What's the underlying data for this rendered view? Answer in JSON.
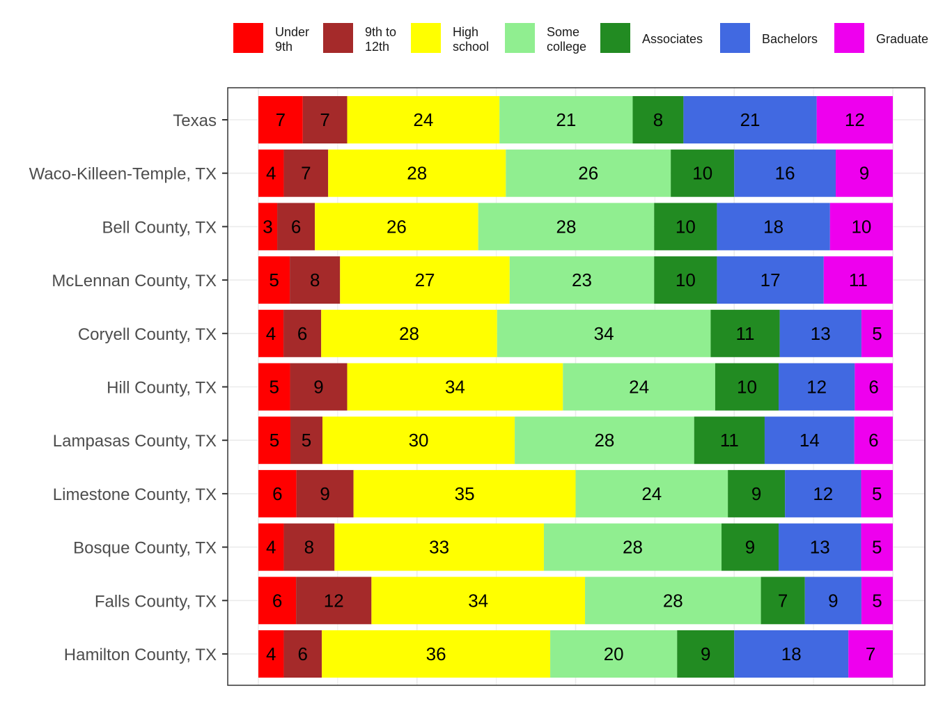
{
  "chart_data": {
    "type": "bar",
    "orientation": "horizontal",
    "stacked": true,
    "title": "",
    "xlabel": "",
    "ylabel": "",
    "xlim": [
      0,
      100
    ],
    "grid": true,
    "legend_position": "top",
    "categories": [
      "Texas",
      "Waco-Killeen-Temple, TX",
      "Bell County, TX",
      "McLennan County, TX",
      "Coryell County, TX",
      "Hill County, TX",
      "Lampasas County, TX",
      "Limestone County, TX",
      "Bosque County, TX",
      "Falls County, TX",
      "Hamilton County, TX"
    ],
    "series": [
      {
        "name": "Under 9th",
        "legend_lines": [
          "Under",
          "9th"
        ],
        "color": "#ff0000",
        "values": [
          7,
          4,
          3,
          5,
          4,
          5,
          5,
          6,
          4,
          6,
          4
        ]
      },
      {
        "name": "9th to 12th",
        "legend_lines": [
          "9th to",
          "12th"
        ],
        "color": "#a52a2a",
        "values": [
          7,
          7,
          6,
          8,
          6,
          9,
          5,
          9,
          8,
          12,
          6
        ]
      },
      {
        "name": "High school",
        "legend_lines": [
          "High",
          "school"
        ],
        "color": "#ffff00",
        "values": [
          24,
          28,
          26,
          27,
          28,
          34,
          30,
          35,
          33,
          34,
          36
        ]
      },
      {
        "name": "Some college",
        "legend_lines": [
          "Some",
          "college"
        ],
        "color": "#90ee90",
        "values": [
          21,
          26,
          28,
          23,
          34,
          24,
          28,
          24,
          28,
          28,
          20
        ]
      },
      {
        "name": "Associates",
        "legend_lines": [
          "Associates"
        ],
        "color": "#228b22",
        "values": [
          8,
          10,
          10,
          10,
          11,
          10,
          11,
          9,
          9,
          7,
          9
        ]
      },
      {
        "name": "Bachelors",
        "legend_lines": [
          "Bachelors"
        ],
        "color": "#4169e1",
        "values": [
          21,
          16,
          18,
          17,
          13,
          12,
          14,
          12,
          13,
          9,
          18
        ]
      },
      {
        "name": "Graduate",
        "legend_lines": [
          "Graduate"
        ],
        "color": "#ee00ee",
        "values": [
          12,
          9,
          10,
          11,
          5,
          6,
          6,
          5,
          5,
          5,
          7
        ]
      }
    ]
  }
}
